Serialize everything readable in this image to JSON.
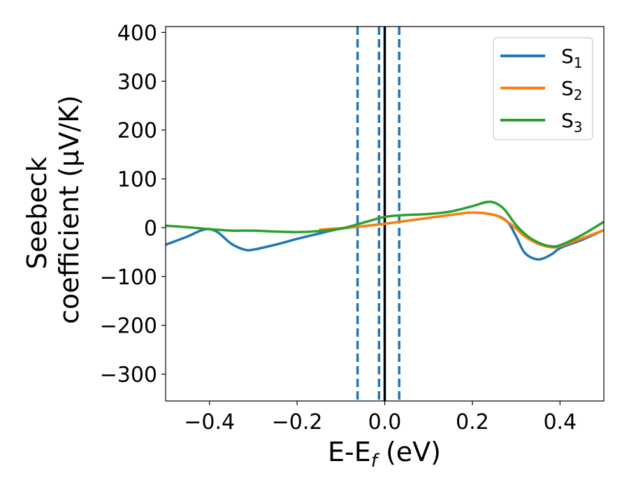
{
  "chart_data": {
    "type": "line",
    "xlabel": {
      "main": "E-E",
      "sub": "f",
      "unit": " (eV)"
    },
    "ylabel": {
      "line1": "Seebeck",
      "line2": "coefficient  (μV/K)"
    },
    "xlim": [
      -0.5,
      0.5
    ],
    "ylim": [
      -355,
      412
    ],
    "xticks": [
      {
        "value": -0.4,
        "label": "−0.4"
      },
      {
        "value": -0.2,
        "label": "−0.2"
      },
      {
        "value": 0.0,
        "label": "0.0"
      },
      {
        "value": 0.2,
        "label": "0.2"
      },
      {
        "value": 0.4,
        "label": "0.4"
      }
    ],
    "yticks": [
      {
        "value": -300,
        "label": "−300"
      },
      {
        "value": -200,
        "label": "−200"
      },
      {
        "value": -100,
        "label": "−100"
      },
      {
        "value": 0,
        "label": "0"
      },
      {
        "value": 100,
        "label": "100"
      },
      {
        "value": 200,
        "label": "200"
      },
      {
        "value": 300,
        "label": "300"
      },
      {
        "value": 400,
        "label": "400"
      }
    ],
    "grid": false,
    "legend_position": "top-right",
    "series": [
      {
        "name": "S1",
        "name_main": "S",
        "name_sub": "1",
        "color": "#1f77b4",
        "x": [
          -0.5,
          -0.45,
          -0.42,
          -0.4,
          -0.38,
          -0.35,
          -0.32,
          -0.3,
          -0.25,
          -0.2,
          -0.15,
          -0.1,
          -0.05,
          0.0,
          0.05,
          0.1,
          0.15,
          0.2,
          0.25,
          0.28,
          0.3,
          0.32,
          0.35,
          0.38,
          0.4,
          0.45,
          0.5
        ],
        "y": [
          -35,
          -18,
          -6,
          -3,
          -10,
          -33,
          -45,
          -45,
          -35,
          -23,
          -12,
          -2,
          3,
          8,
          14,
          20,
          26,
          31,
          26,
          12,
          -18,
          -52,
          -65,
          -55,
          -42,
          -25,
          -5
        ]
      },
      {
        "name": "S2",
        "name_main": "S",
        "name_sub": "2",
        "color": "#ff7f0e",
        "x": [
          -0.15,
          -0.1,
          -0.05,
          0.0,
          0.05,
          0.1,
          0.15,
          0.2,
          0.25,
          0.28,
          0.3,
          0.32,
          0.35,
          0.38,
          0.4,
          0.45,
          0.5
        ],
        "y": [
          -4,
          -1,
          3,
          8,
          14,
          20,
          26,
          31,
          26,
          12,
          -2,
          -18,
          -33,
          -40,
          -38,
          -22,
          -5
        ]
      },
      {
        "name": "S3",
        "name_main": "S",
        "name_sub": "3",
        "color": "#2ca02c",
        "x": [
          -0.5,
          -0.45,
          -0.4,
          -0.35,
          -0.3,
          -0.25,
          -0.2,
          -0.15,
          -0.1,
          -0.05,
          0.0,
          0.05,
          0.1,
          0.15,
          0.2,
          0.24,
          0.27,
          0.3,
          0.33,
          0.36,
          0.38,
          0.4,
          0.45,
          0.5
        ],
        "y": [
          4,
          1,
          -3,
          -6,
          -6,
          -8,
          -9,
          -7,
          -2,
          10,
          22,
          26,
          28,
          33,
          44,
          53,
          40,
          5,
          -20,
          -34,
          -38,
          -36,
          -15,
          12
        ]
      }
    ],
    "vlines": [
      {
        "x": -0.062,
        "style": "dashed",
        "color": "#1f77b4"
      },
      {
        "x": -0.013,
        "style": "dashed",
        "color": "#1f77b4"
      },
      {
        "x": 0.033,
        "style": "dashed",
        "color": "#1f77b4"
      },
      {
        "x": 0.0,
        "style": "solid",
        "color": "#000000"
      }
    ]
  }
}
